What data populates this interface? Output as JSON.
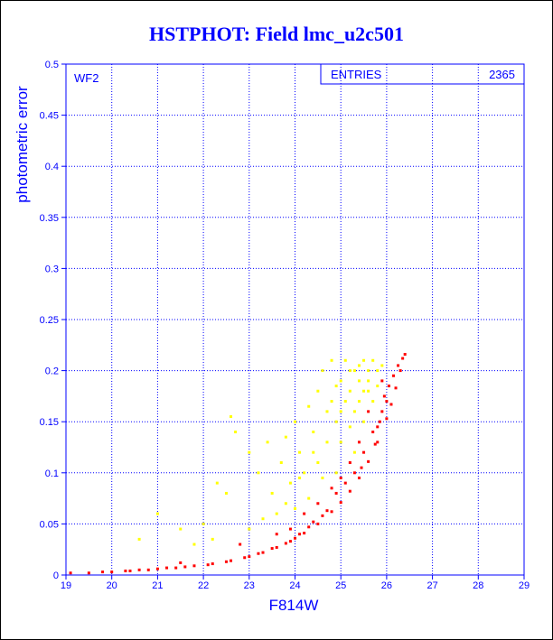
{
  "chart_data": {
    "type": "scatter",
    "title": "HSTPHOT: Field lmc_u2c501",
    "xlabel": "F814W",
    "ylabel": "photometric error",
    "panel_label": "WF2",
    "stats": {
      "label": "ENTRIES",
      "value": "2365"
    },
    "xlim": [
      19,
      29
    ],
    "ylim": [
      0,
      0.5
    ],
    "x_ticks": [
      19,
      20,
      21,
      22,
      23,
      24,
      25,
      26,
      27,
      28,
      29
    ],
    "y_ticks": [
      0,
      0.05,
      0.1,
      0.15,
      0.2,
      0.25,
      0.3,
      0.35,
      0.4,
      0.45,
      0.5
    ],
    "grid": true,
    "series": [
      {
        "color": "#ff0000",
        "points": [
          [
            19.1,
            0.002
          ],
          [
            19.5,
            0.002
          ],
          [
            20.0,
            0.003
          ],
          [
            20.3,
            0.004
          ],
          [
            20.6,
            0.005
          ],
          [
            21.0,
            0.006
          ],
          [
            21.4,
            0.007
          ],
          [
            21.8,
            0.009
          ],
          [
            22.2,
            0.011
          ],
          [
            22.6,
            0.014
          ],
          [
            23.0,
            0.018
          ],
          [
            23.3,
            0.022
          ],
          [
            23.6,
            0.027
          ],
          [
            23.9,
            0.033
          ],
          [
            24.2,
            0.041
          ],
          [
            24.5,
            0.05
          ],
          [
            24.8,
            0.062
          ],
          [
            25.0,
            0.071
          ],
          [
            25.2,
            0.082
          ],
          [
            25.4,
            0.095
          ],
          [
            25.6,
            0.111
          ],
          [
            25.8,
            0.13
          ],
          [
            26.0,
            0.153
          ],
          [
            26.1,
            0.167
          ],
          [
            26.2,
            0.183
          ],
          [
            26.3,
            0.2
          ],
          [
            26.4,
            0.216
          ],
          [
            26.35,
            0.212
          ],
          [
            26.25,
            0.205
          ],
          [
            26.15,
            0.195
          ],
          [
            26.05,
            0.185
          ],
          [
            25.95,
            0.175
          ],
          [
            25.9,
            0.16
          ],
          [
            25.85,
            0.15
          ],
          [
            25.7,
            0.14
          ],
          [
            25.75,
            0.128
          ],
          [
            25.5,
            0.12
          ],
          [
            25.45,
            0.105
          ],
          [
            25.3,
            0.1
          ],
          [
            25.1,
            0.09
          ],
          [
            24.9,
            0.08
          ],
          [
            24.7,
            0.063
          ],
          [
            24.6,
            0.058
          ],
          [
            24.4,
            0.052
          ],
          [
            24.3,
            0.047
          ],
          [
            24.1,
            0.04
          ],
          [
            24.0,
            0.036
          ],
          [
            23.8,
            0.031
          ],
          [
            23.5,
            0.026
          ],
          [
            23.2,
            0.021
          ],
          [
            22.9,
            0.017
          ],
          [
            22.5,
            0.013
          ],
          [
            22.1,
            0.01
          ],
          [
            21.6,
            0.008
          ],
          [
            21.2,
            0.007
          ],
          [
            20.8,
            0.005
          ],
          [
            20.4,
            0.004
          ],
          [
            19.8,
            0.003
          ],
          [
            26.0,
            0.17
          ],
          [
            25.9,
            0.19
          ],
          [
            25.8,
            0.145
          ],
          [
            25.6,
            0.16
          ],
          [
            25.4,
            0.13
          ],
          [
            25.2,
            0.11
          ],
          [
            25.0,
            0.095
          ],
          [
            24.8,
            0.085
          ],
          [
            24.5,
            0.07
          ],
          [
            24.2,
            0.06
          ],
          [
            23.9,
            0.045
          ],
          [
            23.6,
            0.04
          ],
          [
            22.8,
            0.03
          ],
          [
            21.5,
            0.012
          ]
        ]
      },
      {
        "color": "#ffff00",
        "points": [
          [
            20.6,
            0.035
          ],
          [
            21.0,
            0.06
          ],
          [
            21.5,
            0.045
          ],
          [
            22.0,
            0.05
          ],
          [
            22.3,
            0.09
          ],
          [
            22.5,
            0.08
          ],
          [
            22.7,
            0.14
          ],
          [
            22.6,
            0.155
          ],
          [
            23.0,
            0.12
          ],
          [
            23.2,
            0.1
          ],
          [
            23.4,
            0.13
          ],
          [
            23.5,
            0.08
          ],
          [
            23.7,
            0.11
          ],
          [
            23.8,
            0.135
          ],
          [
            23.9,
            0.09
          ],
          [
            24.0,
            0.15
          ],
          [
            24.1,
            0.12
          ],
          [
            24.2,
            0.1
          ],
          [
            24.3,
            0.165
          ],
          [
            24.4,
            0.14
          ],
          [
            24.5,
            0.18
          ],
          [
            24.5,
            0.11
          ],
          [
            24.6,
            0.2
          ],
          [
            24.7,
            0.13
          ],
          [
            24.8,
            0.17
          ],
          [
            24.8,
            0.21
          ],
          [
            24.9,
            0.15
          ],
          [
            25.0,
            0.19
          ],
          [
            25.0,
            0.13
          ],
          [
            25.1,
            0.21
          ],
          [
            25.1,
            0.17
          ],
          [
            25.2,
            0.18
          ],
          [
            25.2,
            0.145
          ],
          [
            25.3,
            0.2
          ],
          [
            25.3,
            0.16
          ],
          [
            25.4,
            0.19
          ],
          [
            25.4,
            0.17
          ],
          [
            25.5,
            0.21
          ],
          [
            25.5,
            0.15
          ],
          [
            25.6,
            0.18
          ],
          [
            25.6,
            0.2
          ],
          [
            25.7,
            0.17
          ],
          [
            25.7,
            0.21
          ],
          [
            25.8,
            0.2
          ],
          [
            25.5,
            0.18
          ],
          [
            25.3,
            0.12
          ],
          [
            24.9,
            0.1
          ],
          [
            24.6,
            0.095
          ],
          [
            24.3,
            0.075
          ],
          [
            24.0,
            0.065
          ],
          [
            23.6,
            0.06
          ],
          [
            23.3,
            0.055
          ],
          [
            23.0,
            0.045
          ],
          [
            22.2,
            0.035
          ],
          [
            21.8,
            0.03
          ],
          [
            24.7,
            0.16
          ],
          [
            24.9,
            0.185
          ],
          [
            25.2,
            0.2
          ],
          [
            25.4,
            0.205
          ],
          [
            25.6,
            0.19
          ],
          [
            25.8,
            0.185
          ],
          [
            25.9,
            0.205
          ],
          [
            25.0,
            0.16
          ],
          [
            24.4,
            0.12
          ],
          [
            24.1,
            0.095
          ],
          [
            23.8,
            0.07
          ]
        ]
      }
    ]
  }
}
